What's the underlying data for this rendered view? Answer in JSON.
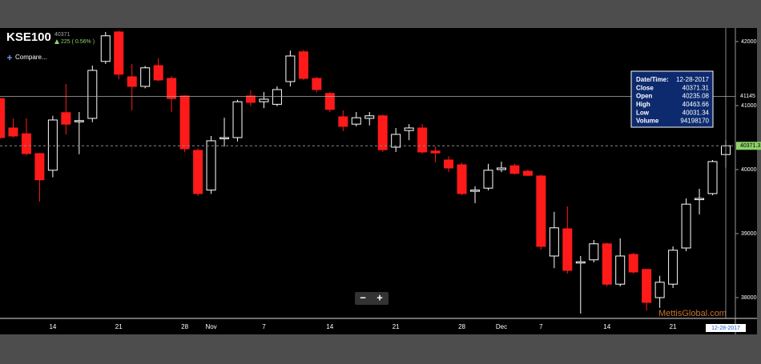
{
  "header": {
    "symbol": "KSE100",
    "price": "40371",
    "change": "225 ( 0.56% )",
    "compare": "Compare..."
  },
  "tooltip": {
    "rows": [
      [
        "Date/Time:",
        "12-28-2017"
      ],
      [
        "Close",
        "40371.31"
      ],
      [
        "Open",
        "40235.08"
      ],
      [
        "High",
        "40463.66"
      ],
      [
        "Low",
        "40031.34"
      ],
      [
        "Volume",
        "94198170"
      ]
    ]
  },
  "zoom_controls": [
    "−",
    "+"
  ],
  "watermark": "MettisGlobal.com",
  "chart_data": {
    "type": "candlestick",
    "categories": [
      null,
      null,
      null,
      null,
      "14",
      null,
      null,
      null,
      null,
      "21",
      null,
      null,
      null,
      null,
      "28",
      null,
      "Nov",
      null,
      null,
      null,
      "7",
      null,
      null,
      null,
      null,
      "14",
      null,
      null,
      null,
      null,
      "21",
      null,
      null,
      null,
      null,
      "28",
      null,
      null,
      "Dec",
      null,
      null,
      "7",
      null,
      null,
      null,
      null,
      "14",
      null,
      null,
      null,
      null,
      "21",
      null,
      null,
      null,
      null
    ],
    "open": [
      41110,
      40650,
      40560,
      40250,
      39990,
      40890,
      40750,
      40800,
      41690,
      42150,
      41450,
      41300,
      41625,
      41425,
      41150,
      40300,
      39680,
      40490,
      40500,
      41150,
      41060,
      41020,
      41375,
      41840,
      41425,
      41190,
      40825,
      40710,
      40800,
      40840,
      40350,
      40610,
      40650,
      40290,
      40150,
      40075,
      39660,
      39710,
      40000,
      40060,
      39975,
      39900,
      38650,
      39075,
      38540,
      38590,
      38840,
      38210,
      38675,
      38440,
      38000,
      38210,
      38775,
      39530,
      39625,
      40235.08
    ],
    "high": [
      41120,
      40800,
      40800,
      40260,
      40840,
      41340,
      40900,
      41625,
      42150,
      42170,
      41650,
      41620,
      41740,
      41460,
      41160,
      40330,
      40525,
      40810,
      41090,
      41240,
      41210,
      41300,
      41860,
      41870,
      41450,
      41210,
      40925,
      40900,
      40900,
      40860,
      40650,
      40710,
      40710,
      40360,
      40210,
      40110,
      39740,
      40090,
      40125,
      40090,
      40000,
      39920,
      39340,
      39425,
      38650,
      38900,
      38860,
      38925,
      38700,
      38450,
      38340,
      38800,
      39550,
      39700,
      40150,
      40463.66
    ],
    "low": [
      40480,
      40500,
      40220,
      39500,
      39880,
      40550,
      40240,
      40740,
      41650,
      41410,
      40925,
      41270,
      41380,
      40900,
      40270,
      39590,
      39620,
      40360,
      40440,
      40990,
      40960,
      40990,
      41300,
      41400,
      41210,
      40900,
      40600,
      40675,
      40690,
      40275,
      40275,
      40460,
      40250,
      40110,
      39960,
      39600,
      39475,
      39675,
      39960,
      39925,
      39900,
      38750,
      38460,
      38375,
      37750,
      38550,
      38175,
      38175,
      38375,
      37800,
      37840,
      38150,
      38725,
      39300,
      39600,
      40031.34
    ],
    "close": [
      40500,
      40525,
      40250,
      39840,
      40775,
      40710,
      40765,
      41550,
      42090,
      41490,
      41300,
      41590,
      41400,
      41110,
      40325,
      39625,
      40450,
      40500,
      41060,
      41050,
      41100,
      41250,
      41775,
      41425,
      41250,
      40940,
      40675,
      40810,
      40840,
      40310,
      40550,
      40650,
      40275,
      40260,
      40025,
      39625,
      39680,
      39990,
      40025,
      39940,
      39910,
      38800,
      39090,
      38425,
      38560,
      38840,
      38210,
      38650,
      38400,
      37925,
      38240,
      38740,
      39460,
      39550,
      40125,
      40371.31
    ],
    "up_color": "#ffffff",
    "down_color": "#ff1a1a",
    "ylim": [
      37675,
      42212
    ],
    "yticks": [
      38000,
      39000,
      40000,
      41000,
      42000
    ],
    "grid": false,
    "crosshair_y": 41145,
    "crosshair_x_label": "12-28-2017",
    "last_price": 40371.31,
    "last_price_color": "#8fd16a"
  }
}
